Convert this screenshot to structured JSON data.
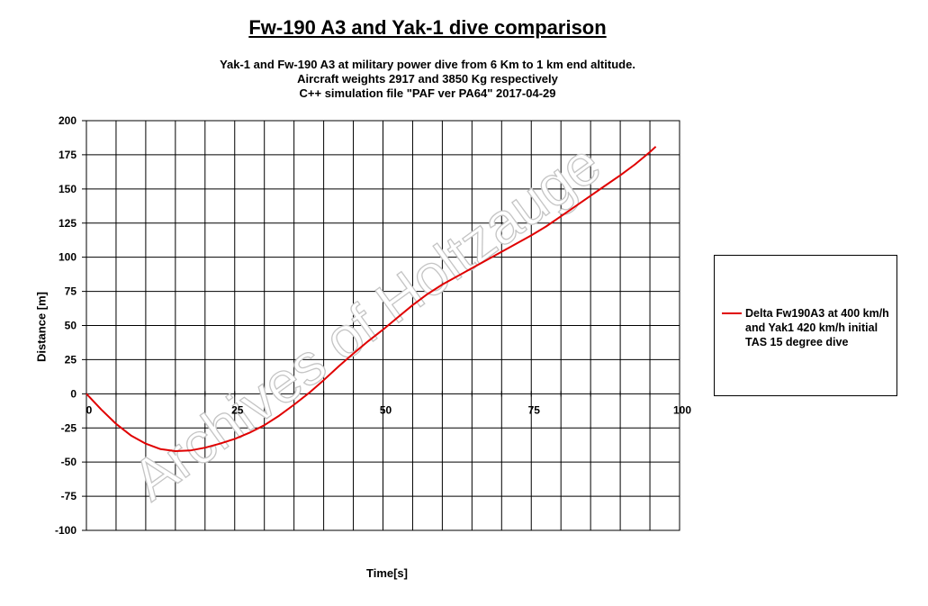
{
  "title": "Fw-190 A3 and Yak-1  dive comparison",
  "subtitle_lines": [
    "Yak-1 and Fw-190 A3  at military  power dive from 6 Km to 1  km  end altitude.",
    "Aircraft weights 2917  and 3850  Kg respectively",
    "C++ simulation file \"PAF  ver PA64\"  2017-04-29"
  ],
  "watermark": "Archives of Holtzauge",
  "chart_data": {
    "type": "line",
    "xlabel": "Time[s]",
    "ylabel": "Distance [m]",
    "xlim": [
      0,
      100
    ],
    "ylim": [
      -100,
      200
    ],
    "x_ticks": [
      "0",
      "25",
      "50",
      "75",
      "100"
    ],
    "y_ticks": [
      "200",
      "175",
      "150",
      "125",
      "100",
      "75",
      "50",
      "25",
      "0",
      "-25",
      "-50",
      "-75",
      "-100"
    ],
    "grid": true,
    "legend_position": "right",
    "series": [
      {
        "name": "Delta Fw190A3 at 400 km/h and Yak1 420 km/h initial TAS 15 degree dive",
        "color": "#e00000",
        "x": [
          0,
          2.5,
          5,
          7.5,
          10,
          12.5,
          15,
          17.5,
          20,
          22.5,
          25,
          27.5,
          30,
          32.5,
          35,
          37.5,
          40,
          42.5,
          45,
          47.5,
          50,
          52.5,
          55,
          57.5,
          60,
          62.5,
          65,
          67.5,
          70,
          72.5,
          75,
          77.5,
          80,
          82.5,
          85,
          87.5,
          90,
          92.5,
          95,
          96
        ],
        "y": [
          0,
          -11.5,
          -22,
          -30.5,
          -36.5,
          -40.5,
          -42,
          -41.5,
          -39.5,
          -36.5,
          -33,
          -28.5,
          -23,
          -16,
          -8,
          0.5,
          10,
          20,
          29.5,
          38.5,
          47,
          56,
          65,
          73,
          80,
          86,
          92,
          98,
          104,
          110,
          116,
          122.5,
          130,
          137.5,
          145,
          152.5,
          160,
          168,
          177,
          181
        ]
      }
    ]
  }
}
